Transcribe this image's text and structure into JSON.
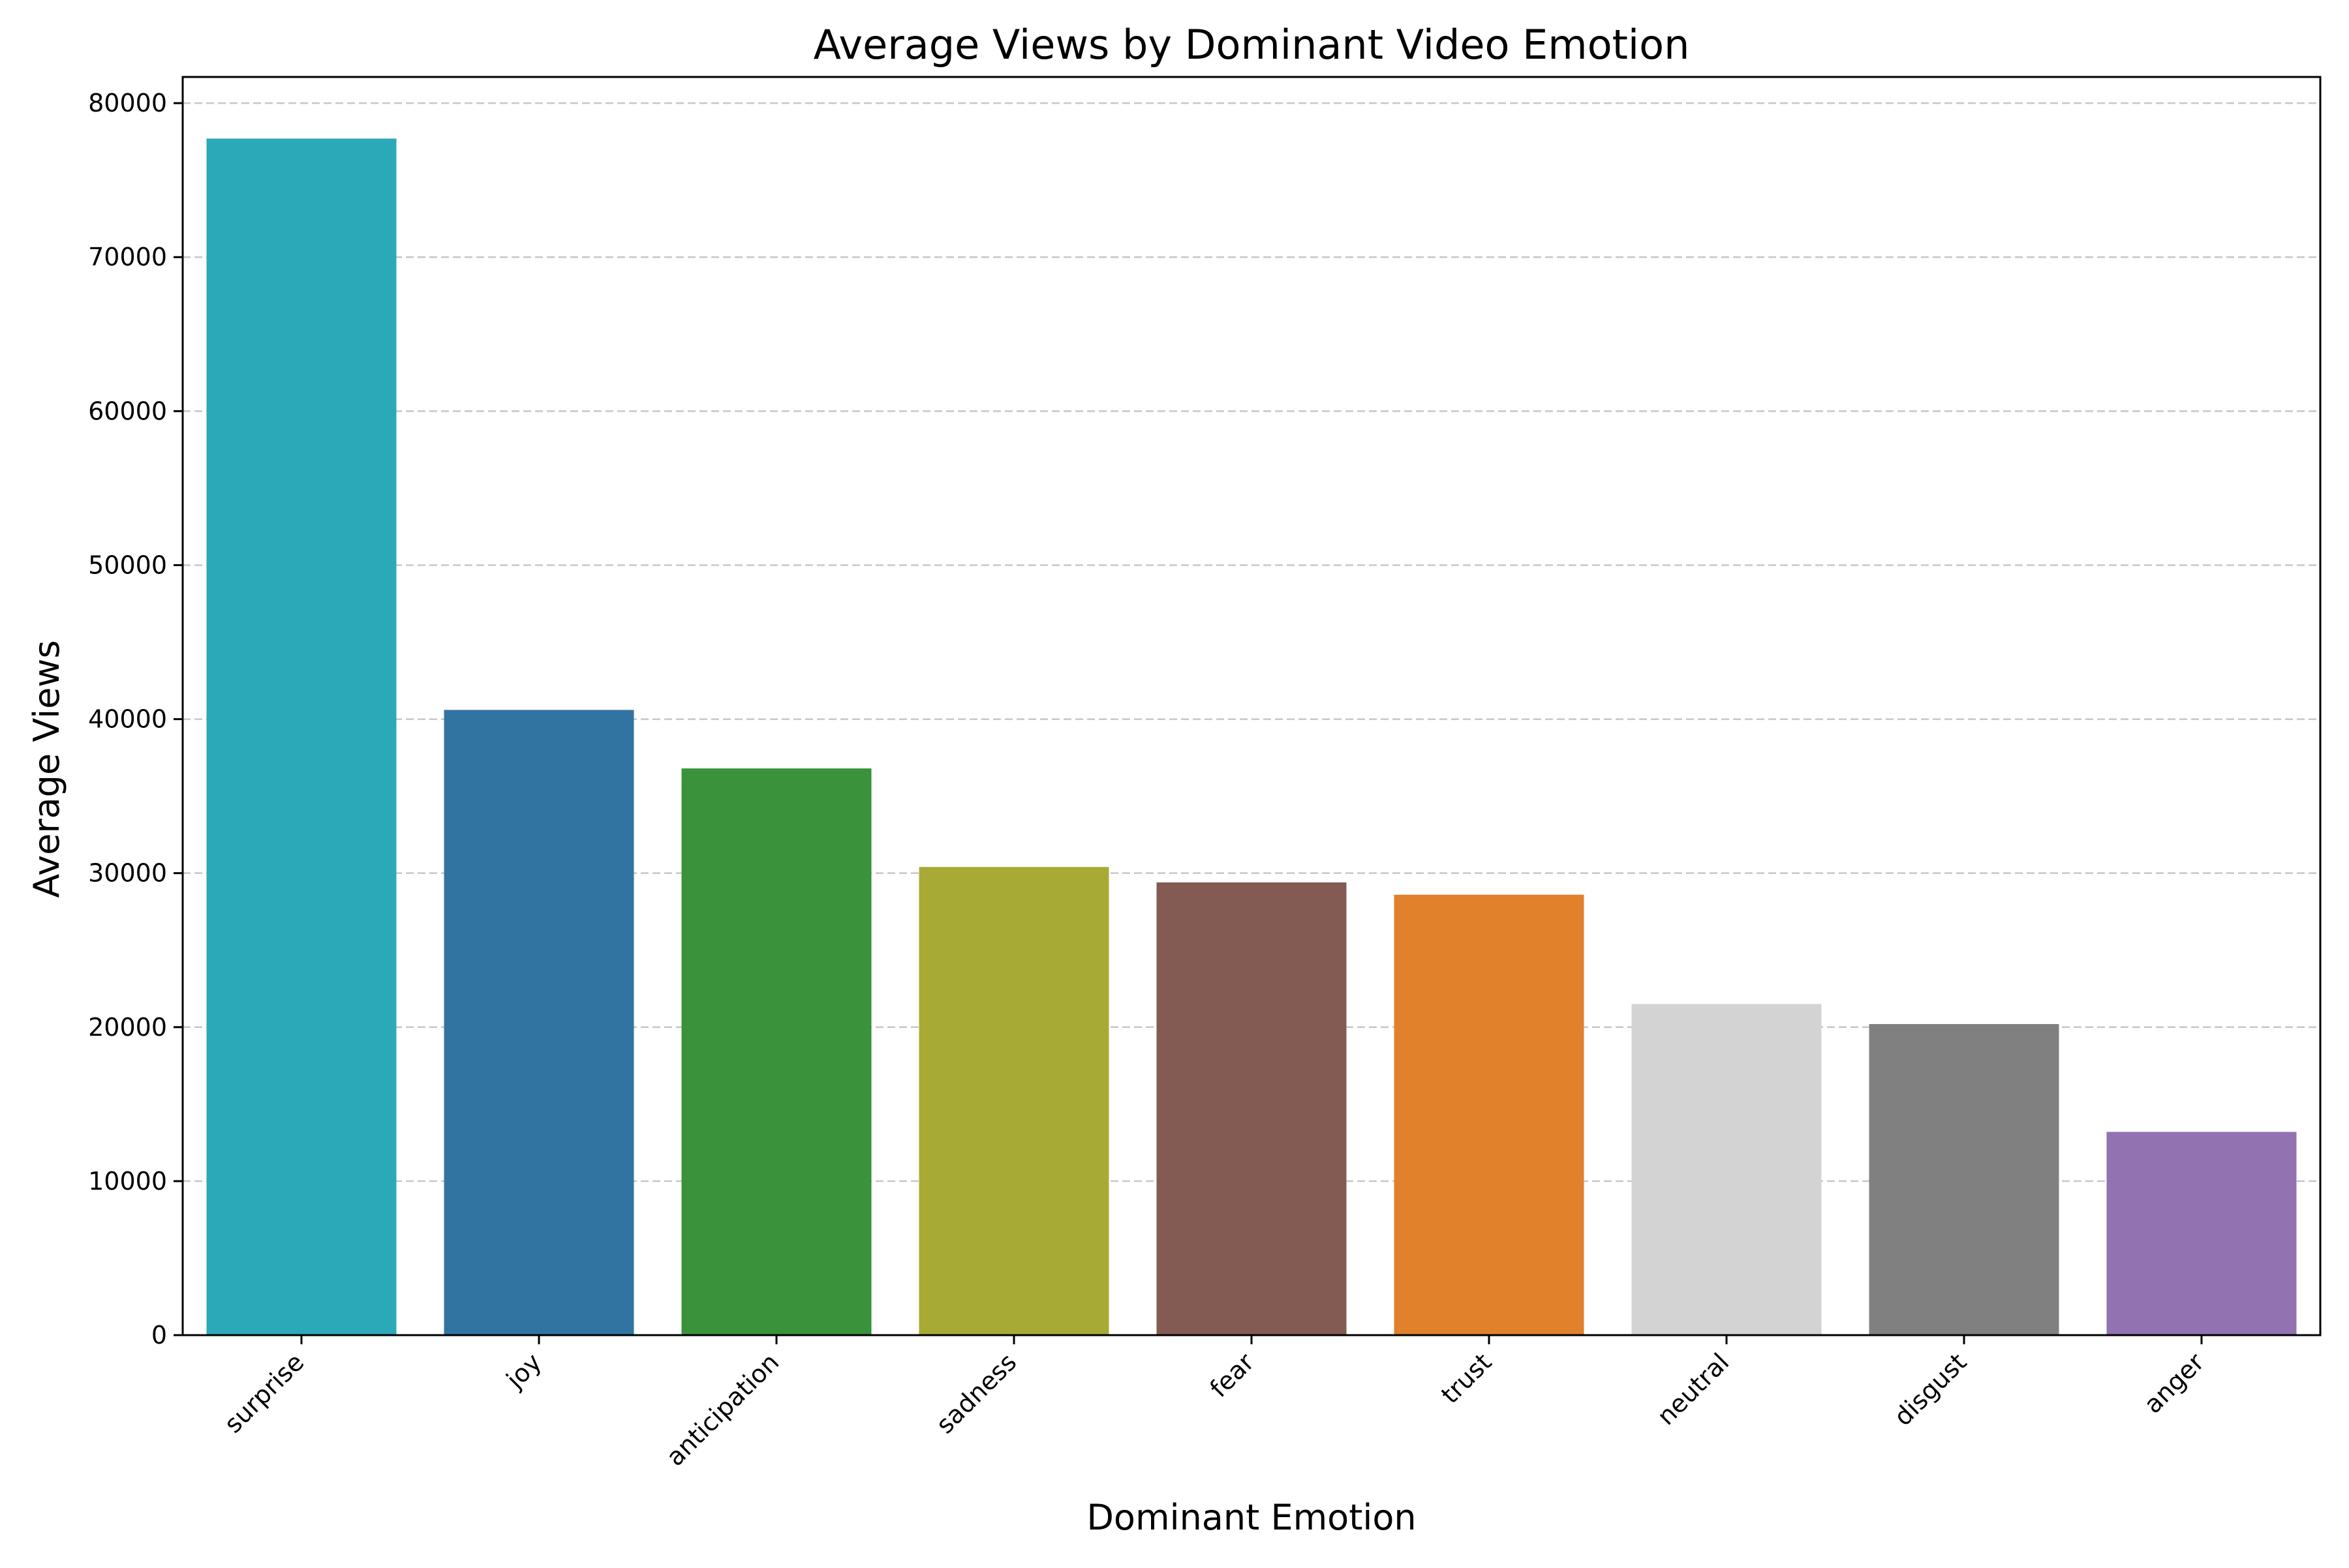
{
  "chart_data": {
    "type": "bar",
    "title": "Average Views by Dominant Video Emotion",
    "xlabel": "Dominant Emotion",
    "ylabel": "Average Views",
    "categories": [
      "surprise",
      "joy",
      "anticipation",
      "sadness",
      "fear",
      "trust",
      "neutral",
      "disgust",
      "anger"
    ],
    "values": [
      77700,
      40600,
      36800,
      30400,
      29400,
      28600,
      21500,
      20200,
      13200
    ],
    "colors": [
      "#2CA9B8",
      "#3274A1",
      "#3A923A",
      "#A8AA36",
      "#845B53",
      "#E1812C",
      "#D3D3D3",
      "#808080",
      "#9372B2"
    ],
    "ylim": [
      0,
      81700
    ],
    "yticks": [
      0,
      10000,
      20000,
      30000,
      40000,
      50000,
      60000,
      70000,
      80000
    ],
    "grid": "y-dashed",
    "legend": "none"
  }
}
